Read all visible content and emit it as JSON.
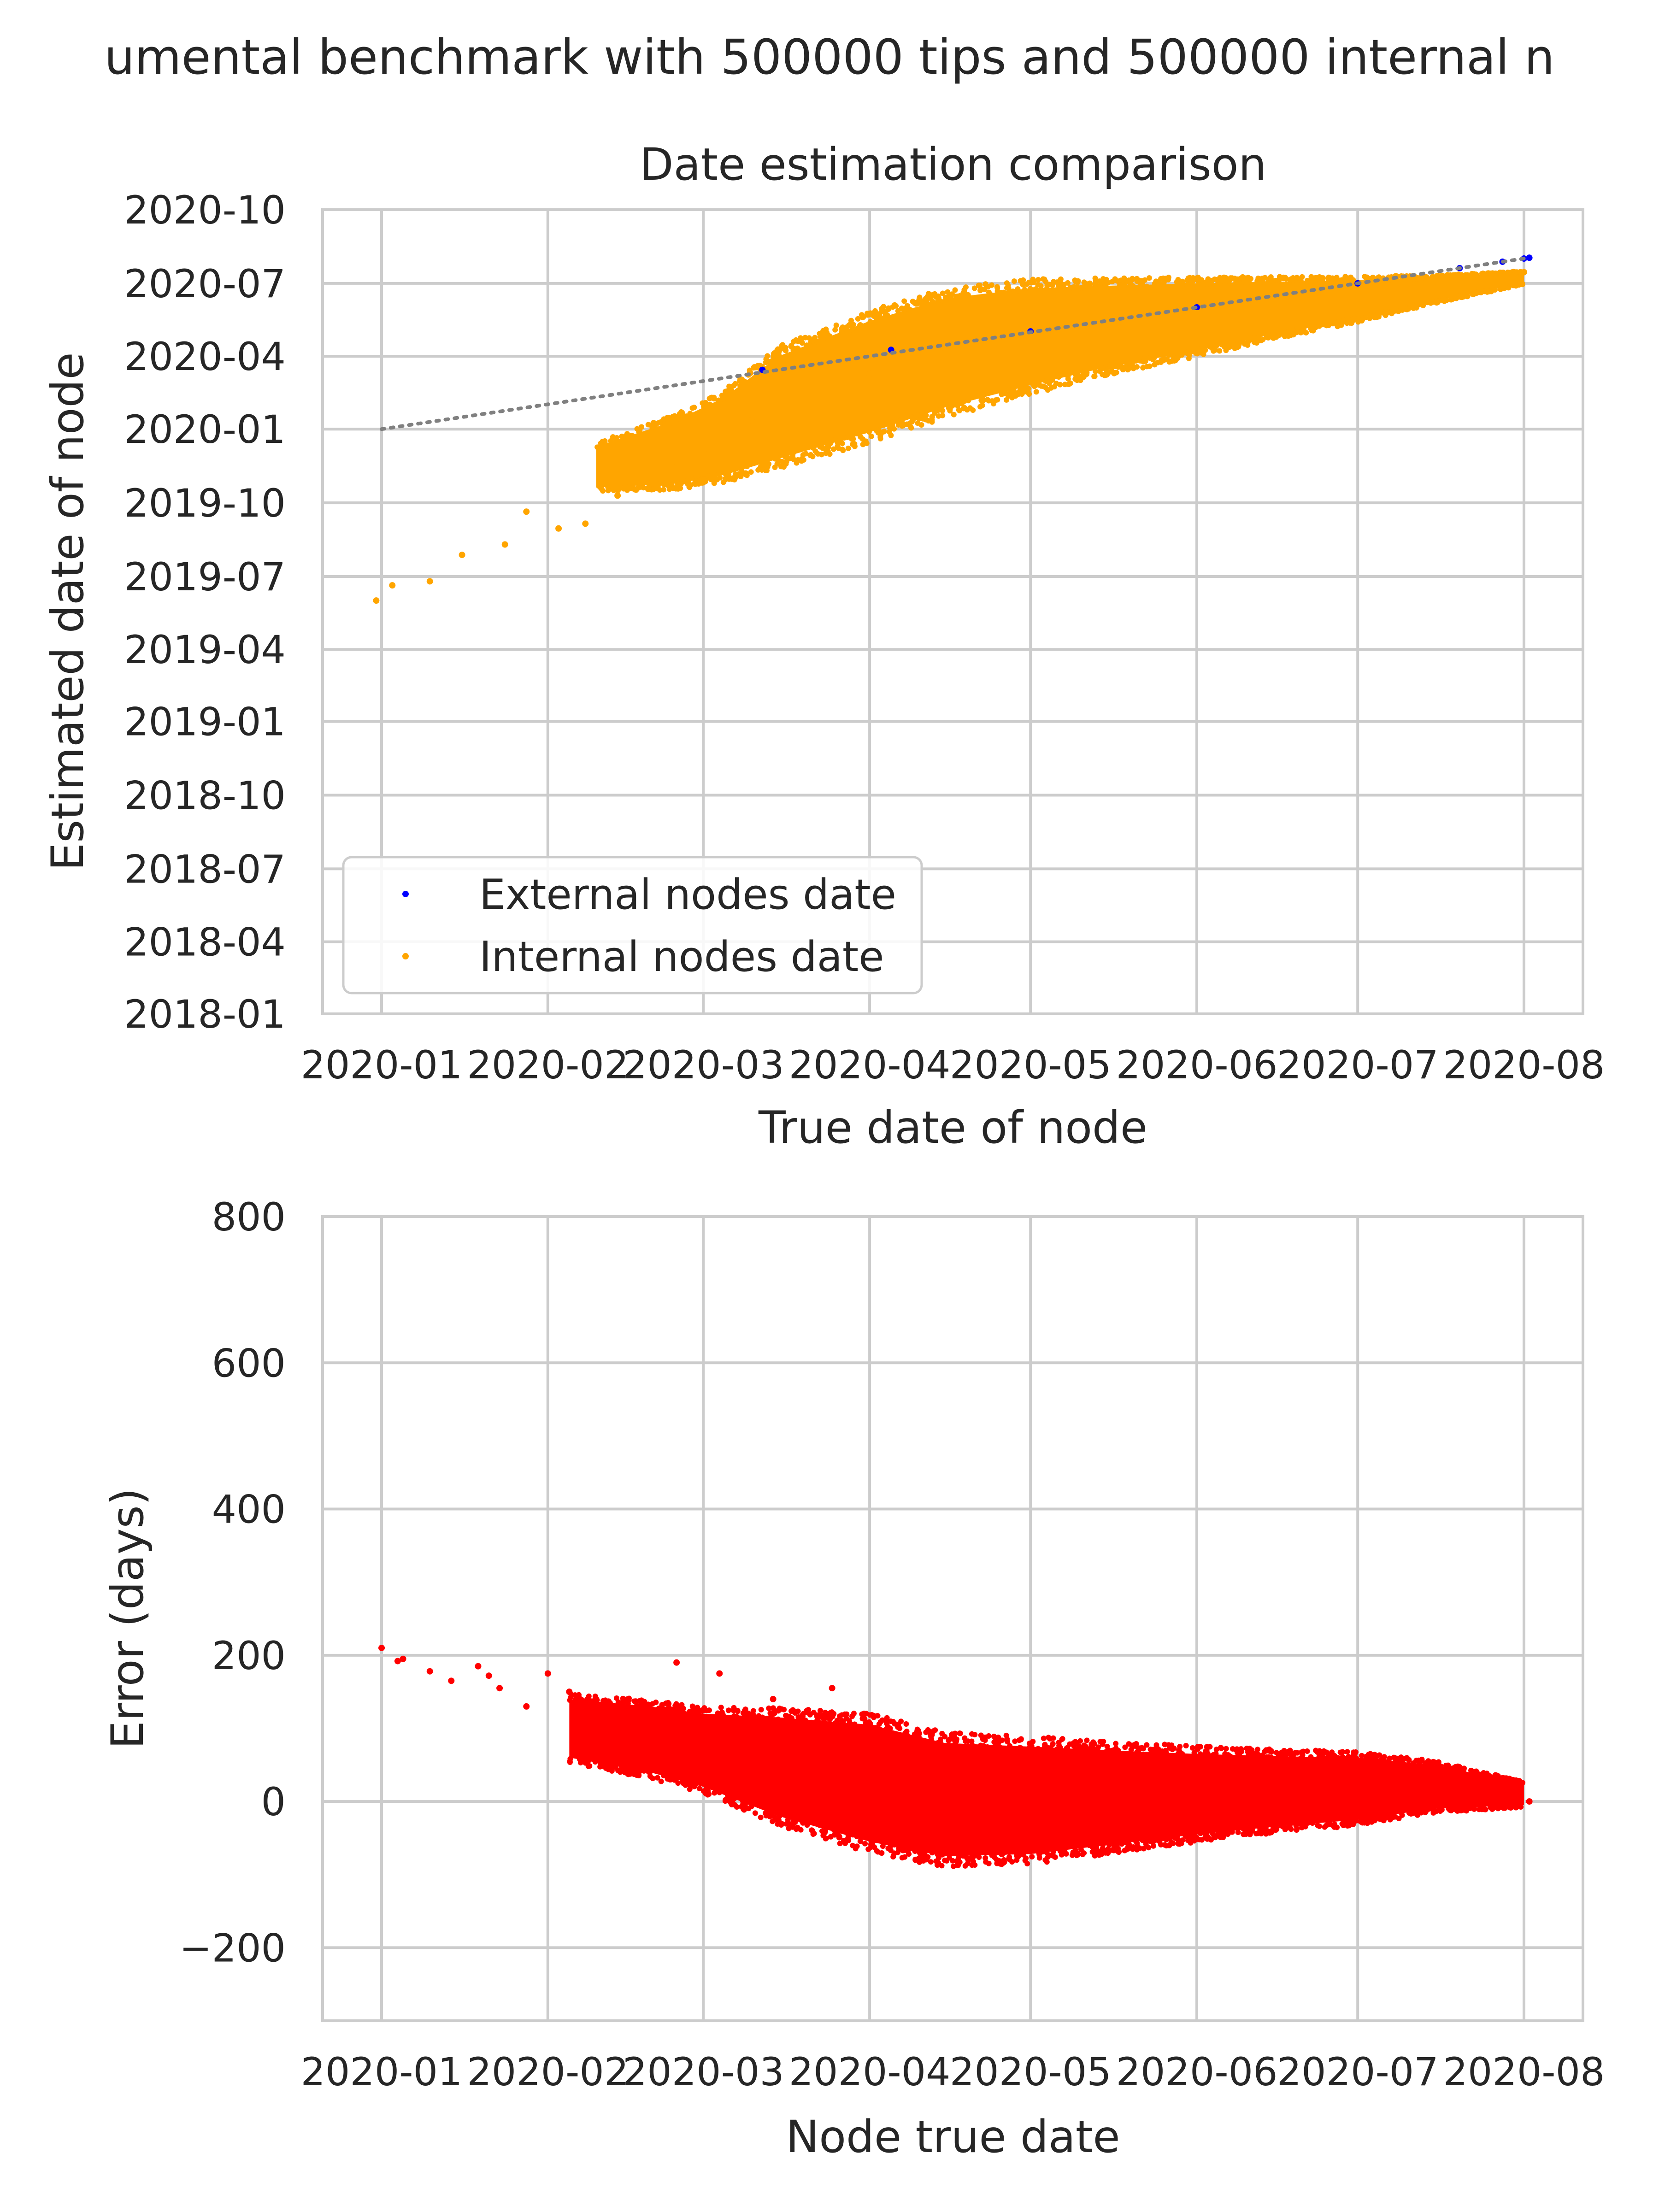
{
  "figure": {
    "suptitle": "umental benchmark with 500000 tips and 500000 internal n"
  },
  "chart_data": [
    {
      "type": "scatter",
      "title": "Date estimation comparison",
      "xlabel": "True date of node",
      "ylabel": "Estimated date of node",
      "x_ticks": [
        "2020-01",
        "2020-02",
        "2020-03",
        "2020-04",
        "2020-05",
        "2020-06",
        "2020-07",
        "2020-08"
      ],
      "y_ticks": [
        "2018-01",
        "2018-04",
        "2018-07",
        "2018-10",
        "2019-01",
        "2019-04",
        "2019-07",
        "2019-10",
        "2020-01",
        "2020-04",
        "2020-07",
        "2020-10"
      ],
      "xlim": [
        "2019-12-21",
        "2020-08-12"
      ],
      "ylim": [
        "2018-01-01",
        "2020-10-01"
      ],
      "grid": true,
      "legend": {
        "placement": "lower-left",
        "entries": [
          "External nodes date",
          "Internal nodes date"
        ]
      },
      "colors": {
        "external": "#0000ff",
        "internal": "#ffa500",
        "reference": "#808080",
        "grid": "#cccccc"
      },
      "series": [
        {
          "name": "External nodes date",
          "color": "#0000ff",
          "points": [
            [
              "2020-03-12",
              "2020-03-15"
            ],
            [
              "2020-04-05",
              "2020-04-09"
            ],
            [
              "2020-05-01",
              "2020-05-02"
            ],
            [
              "2020-06-01",
              "2020-06-01"
            ],
            [
              "2020-07-01",
              "2020-07-01"
            ],
            [
              "2020-07-20",
              "2020-07-20"
            ],
            [
              "2020-07-28",
              "2020-07-28"
            ],
            [
              "2020-08-01",
              "2020-08-01"
            ],
            [
              "2020-08-02",
              "2020-08-02"
            ]
          ]
        },
        {
          "name": "Internal nodes date",
          "color": "#ffa500",
          "points": [
            [
              "2019-12-31",
              "2019-06-01"
            ],
            [
              "2020-01-03",
              "2019-06-20"
            ],
            [
              "2020-01-10",
              "2019-06-25"
            ],
            [
              "2020-01-16",
              "2019-07-28"
            ],
            [
              "2020-01-24",
              "2019-08-10"
            ],
            [
              "2020-01-28",
              "2019-09-20"
            ],
            [
              "2020-02-03",
              "2019-08-30"
            ],
            [
              "2020-02-08",
              "2019-09-05"
            ],
            [
              "2020-02-14",
              "2019-10-10"
            ],
            [
              "2020-02-20",
              "2019-10-25"
            ],
            [
              "2020-02-25",
              "2019-11-15"
            ],
            [
              "2020-03-02",
              "2019-12-01"
            ],
            [
              "2020-03-10",
              "2020-01-12"
            ],
            [
              "2020-03-20",
              "2020-02-05"
            ],
            [
              "2020-04-01",
              "2020-03-10"
            ],
            [
              "2020-04-15",
              "2020-04-05"
            ],
            [
              "2020-05-01",
              "2020-04-25"
            ],
            [
              "2020-05-15",
              "2020-05-10"
            ],
            [
              "2020-06-01",
              "2020-05-25"
            ],
            [
              "2020-06-15",
              "2020-06-05"
            ],
            [
              "2020-07-01",
              "2020-06-18"
            ],
            [
              "2020-07-15",
              "2020-07-01"
            ],
            [
              "2020-08-01",
              "2020-07-15"
            ]
          ]
        }
      ],
      "bands": [
        {
          "series": "Internal nodes date",
          "x": [
            "2020-02-10",
            "2020-02-25",
            "2020-03-05",
            "2020-03-15",
            "2020-04-01",
            "2020-04-15",
            "2020-05-01",
            "2020-05-15",
            "2020-06-01",
            "2020-06-15",
            "2020-07-01",
            "2020-07-15",
            "2020-08-01"
          ],
          "upper": [
            "2019-12-10",
            "2020-01-12",
            "2020-02-10",
            "2020-04-01",
            "2020-05-15",
            "2020-06-12",
            "2020-06-25",
            "2020-06-28",
            "2020-07-01",
            "2020-07-03",
            "2020-07-05",
            "2020-07-08",
            "2020-07-15"
          ],
          "lower": [
            "2019-10-20",
            "2019-10-25",
            "2019-11-05",
            "2019-11-25",
            "2019-12-28",
            "2020-01-28",
            "2020-02-25",
            "2020-03-18",
            "2020-04-08",
            "2020-04-28",
            "2020-05-18",
            "2020-06-08",
            "2020-07-01"
          ]
        }
      ],
      "reference_line": {
        "style": "dotted",
        "points": [
          [
            "2020-01-01",
            "2020-01-01"
          ],
          [
            "2020-08-02",
            "2020-08-02"
          ]
        ]
      }
    },
    {
      "type": "scatter",
      "title": "",
      "xlabel": "Node true date",
      "ylabel": "Error (days)",
      "x_ticks": [
        "2020-01",
        "2020-02",
        "2020-03",
        "2020-04",
        "2020-05",
        "2020-06",
        "2020-07",
        "2020-08"
      ],
      "y_ticks": [
        "−200",
        "0",
        "200",
        "400",
        "600",
        "800"
      ],
      "xlim": [
        "2019-12-21",
        "2020-08-12"
      ],
      "ylim": [
        -300,
        800
      ],
      "grid": true,
      "colors": {
        "points": "#ff0000",
        "grid": "#cccccc"
      },
      "series": [
        {
          "name": "",
          "color": "#ff0000",
          "points": [
            [
              "2020-01-01",
              210
            ],
            [
              "2020-01-04",
              192
            ],
            [
              "2020-01-05",
              195
            ],
            [
              "2020-01-10",
              178
            ],
            [
              "2020-01-14",
              165
            ],
            [
              "2020-01-19",
              185
            ],
            [
              "2020-01-21",
              172
            ],
            [
              "2020-01-23",
              155
            ],
            [
              "2020-01-28",
              130
            ],
            [
              "2020-02-01",
              175
            ],
            [
              "2020-02-05",
              150
            ],
            [
              "2020-02-09",
              120
            ],
            [
              "2020-02-12",
              100
            ],
            [
              "2020-02-18",
              80
            ],
            [
              "2020-02-25",
              190
            ],
            [
              "2020-03-04",
              175
            ],
            [
              "2020-03-14",
              140
            ],
            [
              "2020-03-25",
              155
            ],
            [
              "2020-04-03",
              -5
            ],
            [
              "2020-04-10",
              -60
            ],
            [
              "2020-08-02",
              0
            ]
          ]
        }
      ],
      "bands": [
        {
          "series": "",
          "x": [
            "2020-02-05",
            "2020-02-20",
            "2020-03-01",
            "2020-03-15",
            "2020-04-01",
            "2020-04-15",
            "2020-05-01",
            "2020-05-15",
            "2020-06-01",
            "2020-06-15",
            "2020-07-01",
            "2020-07-15",
            "2020-08-01"
          ],
          "upper": [
            140,
            130,
            120,
            115,
            105,
            80,
            75,
            70,
            65,
            62,
            60,
            50,
            25
          ],
          "lower": [
            60,
            40,
            20,
            -20,
            -55,
            -75,
            -72,
            -60,
            -45,
            -35,
            -25,
            -10,
            -5
          ]
        }
      ]
    }
  ]
}
